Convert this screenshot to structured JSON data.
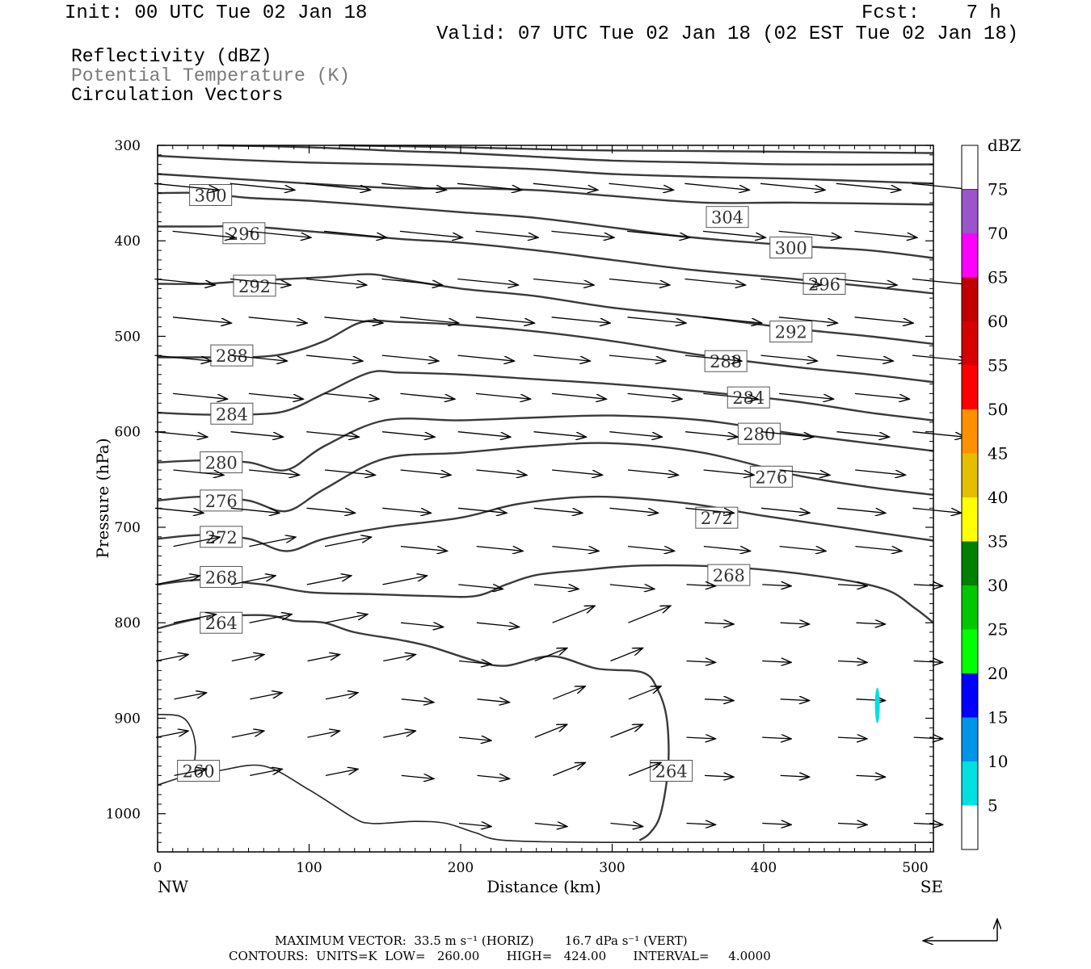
{
  "header": {
    "init": "Init: 00 UTC Tue 02 Jan 18",
    "fcst": "Fcst:    7 h",
    "valid": "Valid: 07 UTC Tue 02 Jan 18 (02 EST Tue 02 Jan 18)",
    "fields": [
      {
        "label": "Reflectivity (dBZ)",
        "color": "#000000"
      },
      {
        "label": "Potential Temperature (K)",
        "color": "#7a7a7a"
      },
      {
        "label": "Circulation Vectors",
        "color": "#000000"
      }
    ]
  },
  "chart_data": {
    "type": "cross-section",
    "xlabel": "Distance (km)",
    "ylabel": "Pressure (hPa)",
    "xlim": [
      0,
      512
    ],
    "ylim": [
      1040,
      300
    ],
    "x_ticks": [
      0,
      100,
      200,
      300,
      400,
      500
    ],
    "y_ticks": [
      300,
      400,
      500,
      600,
      700,
      800,
      900,
      1000
    ],
    "x_end_labels": {
      "left": "NW",
      "right": "SE"
    },
    "colorbar": {
      "unit": "dBZ",
      "labels": [
        "5",
        "10",
        "15",
        "20",
        "25",
        "30",
        "35",
        "40",
        "45",
        "50",
        "55",
        "60",
        "65",
        "70",
        "75"
      ],
      "colors": [
        "#00e0e0",
        "#0095e8",
        "#0000ff",
        "#00ff00",
        "#00c800",
        "#008000",
        "#ffff00",
        "#e6be00",
        "#ff9000",
        "#ff0000",
        "#d60000",
        "#c00000",
        "#ff00ff",
        "#9955c9",
        "#ffffff"
      ]
    },
    "reflectivity_echoes": [
      {
        "x": 475,
        "p_top": 868,
        "p_bottom": 905,
        "dbz": 5
      }
    ],
    "theta_contours": [
      {
        "value": 260,
        "points": [
          [
            0,
            970
          ],
          [
            20,
            960
          ],
          [
            40,
            955
          ],
          [
            70,
            950
          ],
          [
            100,
            975
          ],
          [
            130,
            1005
          ],
          [
            140,
            1010
          ],
          [
            150,
            1010
          ],
          [
            170,
            1008
          ],
          [
            190,
            1010
          ],
          [
            210,
            1020
          ],
          [
            230,
            1028
          ],
          [
            300,
            1030
          ],
          [
            400,
            1030
          ],
          [
            512,
            1030
          ]
        ],
        "label_at": [
          27,
          955
        ]
      },
      {
        "value": 260,
        "points": [
          [
            0,
            896
          ],
          [
            15,
            898
          ],
          [
            22,
            910
          ],
          [
            25,
            930
          ],
          [
            24,
            950
          ]
        ],
        "label_at": null
      },
      {
        "value": 264,
        "points": [
          [
            0,
            806
          ],
          [
            30,
            795
          ],
          [
            70,
            792
          ],
          [
            90,
            798
          ],
          [
            110,
            800
          ],
          [
            130,
            810
          ],
          [
            160,
            818
          ],
          [
            180,
            825
          ],
          [
            210,
            840
          ],
          [
            230,
            845
          ],
          [
            260,
            835
          ],
          [
            290,
            848
          ],
          [
            320,
            852
          ],
          [
            330,
            870
          ],
          [
            336,
            900
          ],
          [
            337,
            950
          ],
          [
            332,
            1000
          ],
          [
            325,
            1020
          ],
          [
            318,
            1028
          ]
        ],
        "label_at": [
          339,
          955
        ]
      },
      {
        "value": 268,
        "points": [
          [
            0,
            760
          ],
          [
            30,
            755
          ],
          [
            70,
            760
          ],
          [
            100,
            768
          ],
          [
            140,
            770
          ],
          [
            180,
            772
          ],
          [
            210,
            772
          ],
          [
            230,
            760
          ],
          [
            250,
            750
          ],
          [
            280,
            745
          ],
          [
            320,
            740
          ],
          [
            380,
            742
          ],
          [
            440,
            752
          ],
          [
            480,
            765
          ],
          [
            500,
            785
          ],
          [
            512,
            800
          ]
        ],
        "label_at": [
          377,
          750
        ]
      },
      {
        "value": 272,
        "points": [
          [
            0,
            712
          ],
          [
            30,
            708
          ],
          [
            60,
            712
          ],
          [
            85,
            725
          ],
          [
            110,
            712
          ],
          [
            150,
            700
          ],
          [
            200,
            690
          ],
          [
            240,
            675
          ],
          [
            290,
            668
          ],
          [
            350,
            675
          ],
          [
            400,
            688
          ],
          [
            460,
            702
          ],
          [
            512,
            714
          ]
        ],
        "label_at": [
          369,
          690
        ]
      },
      {
        "value": 276,
        "points": [
          [
            0,
            672
          ],
          [
            30,
            668
          ],
          [
            60,
            672
          ],
          [
            85,
            683
          ],
          [
            110,
            660
          ],
          [
            150,
            628
          ],
          [
            200,
            622
          ],
          [
            250,
            615
          ],
          [
            300,
            612
          ],
          [
            360,
            622
          ],
          [
            420,
            645
          ],
          [
            470,
            658
          ],
          [
            512,
            666
          ]
        ],
        "label_at": [
          405,
          647
        ]
      },
      {
        "value": 280,
        "points": [
          [
            0,
            632
          ],
          [
            30,
            630
          ],
          [
            60,
            632
          ],
          [
            85,
            640
          ],
          [
            110,
            615
          ],
          [
            150,
            588
          ],
          [
            200,
            588
          ],
          [
            250,
            585
          ],
          [
            300,
            583
          ],
          [
            360,
            588
          ],
          [
            420,
            602
          ],
          [
            470,
            612
          ],
          [
            512,
            620
          ]
        ],
        "label_at": [
          397,
          602
        ]
      },
      {
        "value": 284,
        "points": [
          [
            0,
            580
          ],
          [
            30,
            582
          ],
          [
            60,
            582
          ],
          [
            85,
            578
          ],
          [
            110,
            560
          ],
          [
            140,
            538
          ],
          [
            160,
            538
          ],
          [
            200,
            540
          ],
          [
            250,
            545
          ],
          [
            300,
            550
          ],
          [
            360,
            558
          ],
          [
            420,
            568
          ],
          [
            470,
            580
          ],
          [
            512,
            588
          ]
        ],
        "label_at": [
          390,
          564
        ]
      },
      {
        "value": 288,
        "points": [
          [
            0,
            522
          ],
          [
            30,
            522
          ],
          [
            60,
            522
          ],
          [
            85,
            518
          ],
          [
            110,
            505
          ],
          [
            135,
            485
          ],
          [
            160,
            485
          ],
          [
            200,
            488
          ],
          [
            250,
            495
          ],
          [
            300,
            505
          ],
          [
            360,
            520
          ],
          [
            420,
            532
          ],
          [
            470,
            540
          ],
          [
            512,
            548
          ]
        ],
        "label_at": [
          375,
          526
        ]
      },
      {
        "value": 292,
        "points": [
          [
            0,
            445
          ],
          [
            30,
            445
          ],
          [
            60,
            442
          ],
          [
            85,
            440
          ],
          [
            110,
            438
          ],
          [
            140,
            435
          ],
          [
            160,
            440
          ],
          [
            200,
            450
          ],
          [
            250,
            458
          ],
          [
            300,
            470
          ],
          [
            360,
            480
          ],
          [
            420,
            492
          ],
          [
            470,
            500
          ],
          [
            512,
            508
          ]
        ],
        "label_at": [
          418,
          495
        ]
      },
      {
        "value": 296,
        "points": [
          [
            0,
            385
          ],
          [
            30,
            385
          ],
          [
            60,
            385
          ],
          [
            100,
            390
          ],
          [
            160,
            398
          ],
          [
            200,
            402
          ],
          [
            250,
            410
          ],
          [
            300,
            420
          ],
          [
            350,
            430
          ],
          [
            420,
            440
          ],
          [
            470,
            448
          ],
          [
            512,
            455
          ]
        ],
        "label_at": [
          440,
          445
        ]
      },
      {
        "value": 300,
        "points": [
          [
            0,
            350
          ],
          [
            30,
            350
          ],
          [
            60,
            355
          ],
          [
            100,
            358
          ],
          [
            160,
            365
          ],
          [
            200,
            370
          ],
          [
            250,
            376
          ],
          [
            300,
            386
          ],
          [
            350,
            396
          ],
          [
            420,
            405
          ],
          [
            470,
            410
          ],
          [
            512,
            418
          ]
        ],
        "label_at": [
          418,
          407
        ]
      },
      {
        "value": 304,
        "points": [
          [
            0,
            330
          ],
          [
            50,
            335
          ],
          [
            100,
            340
          ],
          [
            160,
            345
          ],
          [
            200,
            345
          ],
          [
            250,
            347
          ],
          [
            300,
            353
          ],
          [
            360,
            360
          ],
          [
            420,
            360
          ],
          [
            512,
            362
          ]
        ],
        "label_at": [
          376,
          375
        ]
      },
      {
        "value": 308,
        "points": [
          [
            0,
            311
          ],
          [
            50,
            315
          ],
          [
            100,
            318
          ],
          [
            160,
            320
          ],
          [
            200,
            322
          ],
          [
            250,
            325
          ],
          [
            300,
            330
          ],
          [
            360,
            333
          ],
          [
            420,
            335
          ],
          [
            512,
            340
          ]
        ],
        "label_at": null
      },
      {
        "value": 312,
        "points": [
          [
            40,
            300
          ],
          [
            100,
            302
          ],
          [
            160,
            306
          ],
          [
            200,
            308
          ],
          [
            250,
            312
          ],
          [
            300,
            316
          ],
          [
            360,
            318
          ],
          [
            420,
            320
          ],
          [
            512,
            320
          ]
        ],
        "label_at": null
      },
      {
        "value": 316,
        "points": [
          [
            120,
            300
          ],
          [
            200,
            302
          ],
          [
            280,
            305
          ],
          [
            360,
            306
          ],
          [
            512,
            308
          ]
        ],
        "label_at": null
      }
    ],
    "theta_top_label": {
      "value": 300,
      "at": [
        35,
        352
      ]
    },
    "theta_left_labels": [
      {
        "value": 296,
        "at": [
          57,
          392
        ]
      },
      {
        "value": 292,
        "at": [
          64,
          447
        ]
      },
      {
        "value": 288,
        "at": [
          49,
          520
        ]
      },
      {
        "value": 284,
        "at": [
          49,
          581
        ]
      },
      {
        "value": 280,
        "at": [
          42,
          632
        ]
      },
      {
        "value": 276,
        "at": [
          42,
          672
        ]
      },
      {
        "value": 272,
        "at": [
          42,
          710
        ]
      },
      {
        "value": 268,
        "at": [
          42,
          752
        ]
      },
      {
        "value": 264,
        "at": [
          42,
          800
        ]
      }
    ],
    "vector_columns_km": [
      0,
      50,
      100,
      150,
      200,
      250,
      300,
      350,
      400,
      450,
      500
    ],
    "vector_rows_hpa": [
      340,
      390,
      440,
      480,
      520,
      560,
      600,
      640,
      680,
      720,
      760,
      800,
      840,
      880,
      920,
      960,
      1010
    ],
    "max_vector": {
      "horiz": "33.5",
      "vert": "16.7"
    }
  },
  "footer": {
    "max_vector_text": "MAXIMUM VECTOR:  33.5 m s⁻¹ (HORIZ)        16.7 dPa s⁻¹ (VERT)",
    "contours_text": "CONTOURS:  UNITS=K  LOW=   260.00       HIGH=   424.00       INTERVAL=     4.0000"
  }
}
